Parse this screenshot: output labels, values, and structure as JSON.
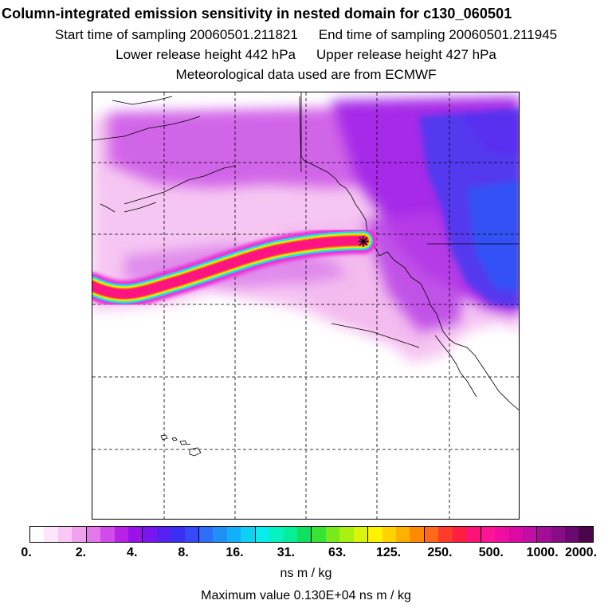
{
  "header": {
    "title": "Column-integrated emission sensitivity in nested domain for c130_060501",
    "start_label": "Start time of sampling 20060501.211821",
    "end_label": "End time of sampling 20060501.211945",
    "lower_label": "Lower release height  442 hPa",
    "upper_label": "Upper release height  427 hPa",
    "met_label": "Meteorological data used are from ECMWF"
  },
  "map": {
    "marker": "release-point-star",
    "grid": true
  },
  "legend": {
    "colors": [
      "#ffffff",
      "#fde6fb",
      "#f9c8f5",
      "#f0a2ee",
      "#e278ea",
      "#d04be8",
      "#b821e6",
      "#9a12ea",
      "#7a14f0",
      "#5820f0",
      "#3a2ef2",
      "#3648f8",
      "#2e6efa",
      "#1e90f8",
      "#12b0f8",
      "#0ed0f4",
      "#08ecec",
      "#06f2c0",
      "#06ee96",
      "#10e060",
      "#38e432",
      "#78ea1c",
      "#aaf012",
      "#dcf40a",
      "#fff200",
      "#ffd200",
      "#ffb000",
      "#ff8a00",
      "#ff6a1a",
      "#ff3c2a",
      "#ff1e40",
      "#ff1276",
      "#ff1496",
      "#f00ea0",
      "#dc0aa4",
      "#c20ea6",
      "#a40e96",
      "#880c86",
      "#6a0a70",
      "#4a0648"
    ],
    "tick_labels": [
      "0.",
      "2.",
      "4.",
      "8.",
      "16.",
      "31.",
      "63.",
      "125.",
      "250.",
      "500.",
      "1000.",
      "2000."
    ],
    "units": "ns m / kg",
    "max_value_line": "Maximum value  0.130E+04 ns m / kg"
  }
}
